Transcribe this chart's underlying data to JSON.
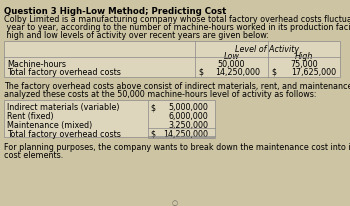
{
  "title": "Question 3 High-Low Method; Predicting Cost",
  "intro_text": "Colby Limited is a manufacturing company whose total factory overhead costs fluctuate somewhat from\n year to year, according to the number of machine-hours worked in its production facility. These costs at\n high and low levels of activity over recent years are given below:",
  "level_header": "Level of Activity",
  "col_low": "Low",
  "col_high": "High",
  "row1_label": "Machine-hours",
  "row1_low": "50,000",
  "row1_high": "75,000",
  "row2_label": "Total factory overhead costs",
  "row2_dollar_low": "$",
  "row2_low": "14,250,000",
  "row2_dollar_high": "$",
  "row2_high": "17,625,000",
  "middle_text": "The factory overhead costs above consist of indirect materials, rent, and maintenance. The company has\nanalyzed these costs at the 50,000 machine-hours level of activity as follows:",
  "detail_rows": [
    {
      "label": "Indirect materials (variable)",
      "dollar": "$",
      "value": "5,000,000"
    },
    {
      "label": "Rent (fixed)",
      "dollar": "",
      "value": "6,000,000"
    },
    {
      "label": "Maintenance (mixed)",
      "dollar": "",
      "value": "3,250,000"
    },
    {
      "label": "Total factory overhead costs",
      "dollar": "$",
      "value": "14,250,000"
    }
  ],
  "footer_text": "For planning purposes, the company wants to break down the maintenance cost into its variable and fixed\ncost elements.",
  "bg_color": "#cdc4a3",
  "table_bg": "#ddd6bc",
  "font_size": 5.8,
  "title_font_size": 6.2
}
